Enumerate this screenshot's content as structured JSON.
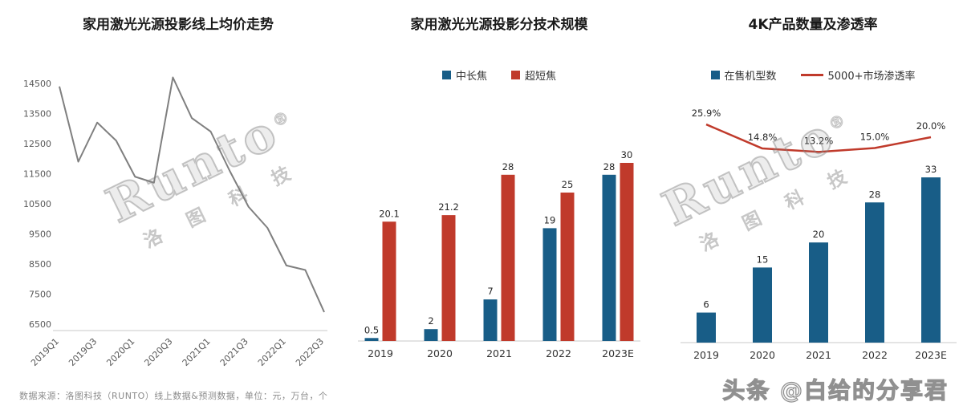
{
  "watermark": {
    "brand": "Runto",
    "reg": "®",
    "cn": "洛 图 科 技"
  },
  "footer": {
    "source_note": "数据来源：洛图科技（RUNTO）线上数据&预测数据，单位：元，万台，个",
    "social_watermark": "头条 @白给的分享君"
  },
  "colors": {
    "blue": "#185d87",
    "red": "#c03a2b",
    "gray_line": "#7f7f7f"
  },
  "chart_data": [
    {
      "type": "line",
      "title": "家用激光光源投影线上均价走势",
      "x": [
        "2019Q1",
        "2019Q2",
        "2019Q3",
        "2019Q4",
        "2020Q1",
        "2020Q2",
        "2020Q3",
        "2020Q4",
        "2021Q1",
        "2021Q2",
        "2021Q3",
        "2021Q4",
        "2022Q1",
        "2022Q2",
        "2022Q3"
      ],
      "x_tick_labels": [
        "2019Q1",
        "2019Q3",
        "2020Q1",
        "2020Q3",
        "2021Q1",
        "2021Q3",
        "2022Q1",
        "2022Q3"
      ],
      "values": [
        14400,
        11900,
        13200,
        12600,
        11400,
        11200,
        14700,
        13350,
        12900,
        11600,
        10400,
        9700,
        8450,
        8300,
        6900
      ],
      "y_ticks": [
        14500,
        13500,
        12500,
        11500,
        10500,
        9500,
        8500,
        7500,
        6500
      ],
      "ylim": [
        6500,
        14500
      ],
      "grid": false,
      "legend": false,
      "line_color": "#7f7f7f",
      "xlabel": "",
      "ylabel": ""
    },
    {
      "type": "bar",
      "title": "家用激光光源投影分技术规模",
      "categories": [
        "2019",
        "2020",
        "2021",
        "2022",
        "2023E"
      ],
      "series": [
        {
          "name": "中长焦",
          "color": "#185d87",
          "values": [
            0.5,
            2,
            7,
            19,
            28
          ]
        },
        {
          "name": "超短焦",
          "color": "#c03a2b",
          "values": [
            20.1,
            21.2,
            28,
            25,
            30
          ]
        }
      ],
      "ylim": [
        0,
        32
      ],
      "grid": false,
      "legend_position": "top",
      "value_labels": true
    },
    {
      "type": "bar+line",
      "title": "4K产品数量及渗透率",
      "categories": [
        "2019",
        "2020",
        "2021",
        "2022",
        "2023E"
      ],
      "bar_series": {
        "name": "在售机型数",
        "color": "#185d87",
        "values": [
          6,
          15,
          20,
          28,
          33
        ]
      },
      "line_series": {
        "name": "5000+市场渗透率",
        "color": "#c03a2b",
        "values_pct": [
          25.9,
          14.8,
          13.2,
          15.0,
          20.0
        ],
        "labels": [
          "25.9%",
          "14.8%",
          "13.2%",
          "15.0%",
          "20.0%"
        ]
      },
      "ylim": [
        0,
        35
      ],
      "grid": false,
      "legend_position": "top",
      "value_labels": true
    }
  ]
}
